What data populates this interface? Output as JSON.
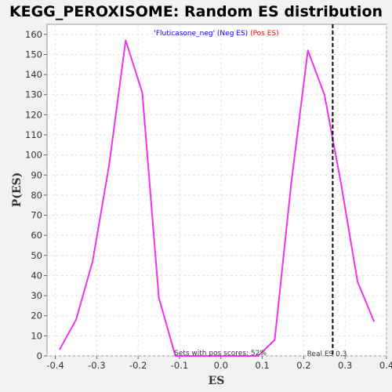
{
  "chart_data": {
    "type": "line",
    "title": "KEGG_PEROXISOME: Random ES distribution",
    "xlabel": "ES",
    "ylabel": "P(ES)",
    "xlim": [
      -0.42,
      0.4
    ],
    "ylim": [
      0,
      165
    ],
    "x_ticks": [
      "-0.4",
      "-0.3",
      "-0.2",
      "-0.1",
      "0.0",
      "0.1",
      "0.2",
      "0.3",
      "0.4"
    ],
    "x_tick_values": [
      -0.4,
      -0.3,
      -0.2,
      -0.1,
      0.0,
      0.1,
      0.2,
      0.3,
      0.4
    ],
    "y_ticks": [
      "0",
      "10",
      "20",
      "30",
      "40",
      "50",
      "60",
      "70",
      "80",
      "90",
      "100",
      "110",
      "120",
      "130",
      "140",
      "150",
      "160"
    ],
    "y_tick_values": [
      0,
      10,
      20,
      30,
      40,
      50,
      60,
      70,
      80,
      90,
      100,
      110,
      120,
      130,
      140,
      150,
      160
    ],
    "grid": true,
    "legend": {
      "blue_text": "'Fluticasone_neg' (Neg ES)",
      "red_text": "(Pos ES)",
      "blue_color": "#0000ff",
      "red_color": "#ff0000"
    },
    "series_color": "#ee33ee",
    "real_es_line": {
      "x": 0.27,
      "color": "#000000",
      "style": "dashed"
    },
    "annotations": {
      "pos_scores": "Sets with pos scores: 52%",
      "real_es": "Real ES 0.3"
    },
    "series": [
      {
        "x": [
          -0.39,
          -0.35,
          -0.31,
          -0.27,
          -0.23,
          -0.19,
          -0.15,
          -0.11,
          0.09,
          0.13,
          0.17,
          0.21,
          0.25,
          0.29,
          0.33,
          0.37
        ],
        "y": [
          3,
          18,
          47,
          95,
          157,
          131,
          29,
          0,
          0,
          8,
          86,
          152,
          130,
          86,
          37,
          17
        ]
      }
    ]
  }
}
